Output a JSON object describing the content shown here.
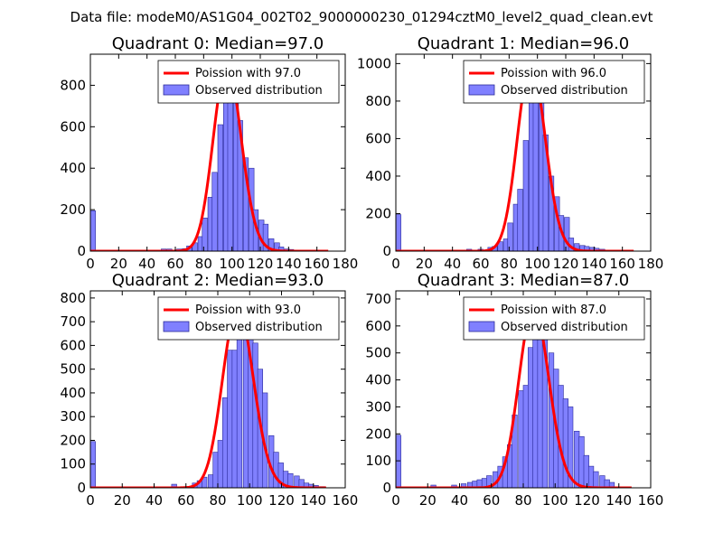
{
  "figure": {
    "suptitle": "Data file: modeM0/AS1G04_002T02_9000000230_01294cztM0_level2_quad_clean.evt",
    "bar_color": "#8080ff",
    "bar_edge": "#2a2a99",
    "curve_color": "#ff0000"
  },
  "chart_data": [
    {
      "type": "bar",
      "title": "Quadrant 0: Median=97.0",
      "median": 97.0,
      "xlim": [
        0,
        180
      ],
      "ylim": [
        0,
        950
      ],
      "xticks": [
        0,
        20,
        40,
        60,
        80,
        100,
        120,
        140,
        160,
        180
      ],
      "yticks": [
        0,
        200,
        400,
        600,
        800
      ],
      "bin_width": 3.6,
      "bins": [
        [
          0,
          195
        ],
        [
          50,
          10
        ],
        [
          54,
          10
        ],
        [
          61,
          10
        ],
        [
          65,
          12
        ],
        [
          68,
          25
        ],
        [
          72,
          40
        ],
        [
          76,
          70
        ],
        [
          79,
          160
        ],
        [
          83,
          260
        ],
        [
          86,
          380
        ],
        [
          90,
          610
        ],
        [
          94,
          790
        ],
        [
          97,
          900
        ],
        [
          101,
          800
        ],
        [
          104,
          630
        ],
        [
          108,
          450
        ],
        [
          112,
          400
        ],
        [
          115,
          200
        ],
        [
          119,
          150
        ],
        [
          122,
          130
        ],
        [
          126,
          60
        ],
        [
          130,
          40
        ],
        [
          133,
          20
        ],
        [
          137,
          10
        ],
        [
          140,
          8
        ],
        [
          144,
          5
        ],
        [
          148,
          4
        ],
        [
          151,
          3
        ],
        [
          155,
          2
        ],
        [
          158,
          2
        ],
        [
          162,
          1
        ]
      ],
      "legend": [
        {
          "label": "Poission with 97.0",
          "kind": "line"
        },
        {
          "label": "Observed distribution",
          "kind": "patch"
        }
      ]
    },
    {
      "type": "bar",
      "title": "Quadrant 1: Median=96.0",
      "median": 96.0,
      "xlim": [
        0,
        180
      ],
      "ylim": [
        0,
        1050
      ],
      "xticks": [
        0,
        20,
        40,
        60,
        80,
        100,
        120,
        140,
        160,
        180
      ],
      "yticks": [
        0,
        200,
        400,
        600,
        800,
        1000
      ],
      "bin_width": 3.6,
      "bins": [
        [
          0,
          195
        ],
        [
          50,
          10
        ],
        [
          58,
          10
        ],
        [
          65,
          20
        ],
        [
          68,
          25
        ],
        [
          72,
          50
        ],
        [
          76,
          65
        ],
        [
          79,
          150
        ],
        [
          83,
          250
        ],
        [
          86,
          330
        ],
        [
          90,
          590
        ],
        [
          94,
          830
        ],
        [
          97,
          1000
        ],
        [
          101,
          830
        ],
        [
          104,
          620
        ],
        [
          108,
          400
        ],
        [
          112,
          290
        ],
        [
          115,
          190
        ],
        [
          119,
          180
        ],
        [
          122,
          70
        ],
        [
          126,
          40
        ],
        [
          130,
          30
        ],
        [
          133,
          25
        ],
        [
          137,
          20
        ],
        [
          140,
          15
        ],
        [
          144,
          10
        ]
      ],
      "legend": [
        {
          "label": "Poission with 96.0",
          "kind": "line"
        },
        {
          "label": "Observed distribution",
          "kind": "patch"
        }
      ]
    },
    {
      "type": "bar",
      "title": "Quadrant 2: Median=93.0",
      "median": 93.0,
      "xlim": [
        0,
        160
      ],
      "ylim": [
        0,
        830
      ],
      "xticks": [
        0,
        20,
        40,
        60,
        80,
        100,
        120,
        140,
        160
      ],
      "yticks": [
        0,
        100,
        200,
        300,
        400,
        500,
        600,
        700,
        800
      ],
      "bin_width": 3.2,
      "bins": [
        [
          0,
          195
        ],
        [
          51,
          15
        ],
        [
          64,
          20
        ],
        [
          67,
          30
        ],
        [
          70,
          45
        ],
        [
          74,
          55
        ],
        [
          77,
          150
        ],
        [
          80,
          200
        ],
        [
          83,
          380
        ],
        [
          86,
          580
        ],
        [
          89,
          580
        ],
        [
          92,
          660
        ],
        [
          96,
          720
        ],
        [
          99,
          760
        ],
        [
          102,
          610
        ],
        [
          105,
          500
        ],
        [
          108,
          400
        ],
        [
          112,
          220
        ],
        [
          115,
          150
        ],
        [
          118,
          105
        ],
        [
          121,
          70
        ],
        [
          124,
          60
        ],
        [
          128,
          50
        ],
        [
          131,
          35
        ],
        [
          134,
          20
        ],
        [
          137,
          15
        ],
        [
          140,
          10
        ],
        [
          144,
          5
        ]
      ],
      "legend": [
        {
          "label": "Poission with 93.0",
          "kind": "line"
        },
        {
          "label": "Observed distribution",
          "kind": "patch"
        }
      ]
    },
    {
      "type": "bar",
      "title": "Quadrant 3: Median=87.0",
      "median": 87.0,
      "xlim": [
        0,
        160
      ],
      "ylim": [
        0,
        730
      ],
      "xticks": [
        0,
        20,
        40,
        60,
        80,
        100,
        120,
        140,
        160
      ],
      "yticks": [
        0,
        100,
        200,
        300,
        400,
        500,
        600,
        700
      ],
      "bin_width": 3.2,
      "bins": [
        [
          0,
          195
        ],
        [
          22,
          10
        ],
        [
          35,
          10
        ],
        [
          41,
          15
        ],
        [
          45,
          20
        ],
        [
          48,
          25
        ],
        [
          51,
          30
        ],
        [
          54,
          35
        ],
        [
          57,
          45
        ],
        [
          61,
          60
        ],
        [
          64,
          80
        ],
        [
          67,
          115
        ],
        [
          70,
          160
        ],
        [
          73,
          270
        ],
        [
          77,
          360
        ],
        [
          80,
          380
        ],
        [
          83,
          520
        ],
        [
          86,
          670
        ],
        [
          89,
          650
        ],
        [
          92,
          570
        ],
        [
          96,
          500
        ],
        [
          99,
          440
        ],
        [
          102,
          380
        ],
        [
          105,
          330
        ],
        [
          108,
          300
        ],
        [
          112,
          210
        ],
        [
          115,
          190
        ],
        [
          118,
          120
        ],
        [
          121,
          80
        ],
        [
          124,
          60
        ],
        [
          128,
          45
        ],
        [
          131,
          30
        ],
        [
          134,
          20
        ]
      ],
      "legend": [
        {
          "label": "Poission with 87.0",
          "kind": "line"
        },
        {
          "label": "Observed distribution",
          "kind": "patch"
        }
      ]
    }
  ]
}
